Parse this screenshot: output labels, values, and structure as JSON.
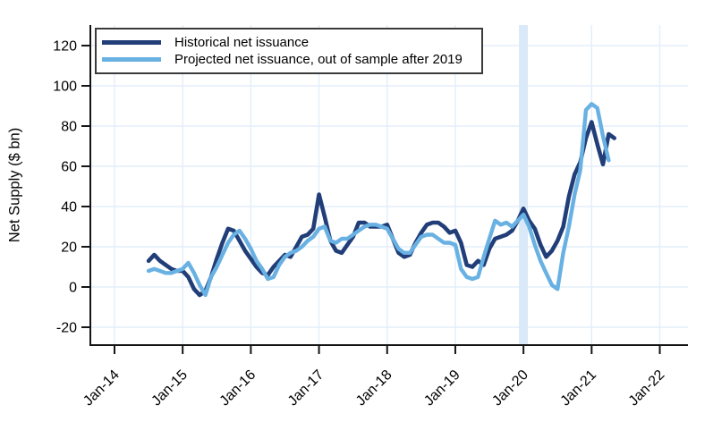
{
  "chart_data": {
    "type": "line",
    "title": "",
    "ylabel": "Net Supply ($ bn)",
    "xlabel": "",
    "grid": true,
    "legend_position": "top-left",
    "y_ticks": [
      -20,
      0,
      20,
      40,
      60,
      80,
      100,
      120
    ],
    "ylim": [
      -30,
      130
    ],
    "x_tick_labels": [
      "Jan-14",
      "Jan-15",
      "Jan-16",
      "Jan-17",
      "Jan-18",
      "Jan-19",
      "Jan-20",
      "Jan-21",
      "Jan-22"
    ],
    "x_unit": "monthly",
    "projection_band": {
      "month": "2020-01",
      "color": "#d9e9f8"
    },
    "colors": {
      "grid": "#e3eefa",
      "axis": "#141414",
      "background": "#ffffff"
    },
    "series": [
      {
        "name": "Historical net issuance",
        "color": "#213e78",
        "width": 4.6,
        "start": "2014-07",
        "frequency": "monthly",
        "values": [
          13,
          16,
          13,
          11,
          9,
          8,
          8,
          5,
          -1,
          -4,
          -2,
          5,
          14,
          22,
          29,
          28,
          23,
          18,
          14,
          10,
          7,
          6,
          10,
          13,
          16,
          15,
          20,
          25,
          26,
          29,
          46,
          35,
          23,
          18,
          17,
          21,
          25,
          32,
          32,
          30,
          30,
          30,
          31,
          24,
          17,
          15,
          16,
          22,
          27,
          31,
          32,
          32,
          30,
          27,
          28,
          22,
          11,
          10,
          13,
          11,
          19,
          24,
          25,
          26,
          28,
          33,
          39,
          33,
          29,
          21,
          15,
          18,
          23,
          30,
          45,
          56,
          62,
          74,
          82,
          71,
          61,
          76,
          74
        ]
      },
      {
        "name": "Projected net issuance, out of sample after 2019",
        "color": "#68b1e2",
        "width": 4.4,
        "start": "2014-07",
        "frequency": "monthly",
        "values": [
          8,
          9,
          8,
          7,
          7,
          8,
          9,
          12,
          7,
          1,
          -4,
          5,
          10,
          16,
          22,
          26,
          28,
          24,
          19,
          13,
          9,
          4,
          5,
          11,
          15,
          17,
          18,
          20,
          23,
          25,
          29,
          30,
          23,
          22,
          24,
          24,
          26,
          28,
          30,
          31,
          31,
          30,
          29,
          24,
          19,
          17,
          17,
          21,
          25,
          26,
          26,
          24,
          22,
          22,
          21,
          9,
          5,
          4,
          5,
          15,
          24,
          33,
          31,
          32,
          30,
          33,
          36,
          30,
          21,
          13,
          7,
          1,
          -1,
          17,
          30,
          46,
          58,
          88,
          91,
          89,
          75,
          63
        ]
      }
    ]
  }
}
